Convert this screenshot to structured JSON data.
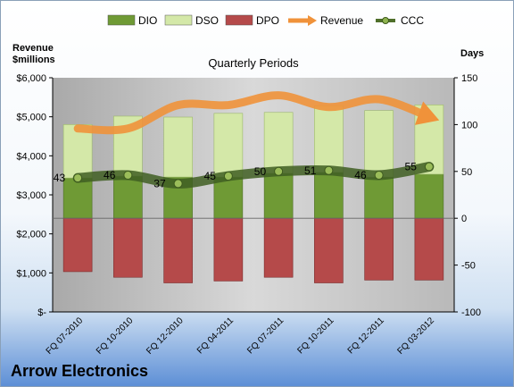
{
  "chart_data": {
    "type": "bar",
    "title": "Quarterly Periods",
    "company": "Arrow Electronics",
    "left_axis_label": [
      "Revenue",
      "$millions"
    ],
    "right_axis_label": "Days",
    "left_axis": {
      "min": 0,
      "max": 6000,
      "ticks": [
        "$-",
        "$1,000",
        "$2,000",
        "$3,000",
        "$4,000",
        "$5,000",
        "$6,000"
      ]
    },
    "right_axis": {
      "min": -100,
      "max": 150,
      "ticks": [
        "-100",
        "-50",
        "0",
        "50",
        "100",
        "150"
      ]
    },
    "categories": [
      "FQ 07-2010",
      "FQ 10-2010",
      "FQ 12-2010",
      "FQ 04-2011",
      "FQ 07-2011",
      "FQ 10-2011",
      "FQ 12-2011",
      "FQ 03-2012"
    ],
    "series": [
      {
        "name": "DIO",
        "axis": "days",
        "color": "#6f9a35",
        "values": [
          43,
          45,
          44,
          44,
          48,
          49,
          44,
          47
        ]
      },
      {
        "name": "DSO",
        "axis": "days",
        "color": "#d4e8a8",
        "values": [
          57,
          64,
          64,
          68,
          65,
          71,
          71,
          74
        ]
      },
      {
        "name": "DPO",
        "axis": "days",
        "color": "#b54a4a",
        "values": [
          -57,
          -63,
          -69,
          -67,
          -63,
          -69,
          -66,
          -66
        ]
      },
      {
        "name": "Revenue",
        "axis": "revenue",
        "color": "#f0923a",
        "values": [
          4700,
          4700,
          5300,
          5300,
          5550,
          5250,
          5450,
          5000
        ]
      },
      {
        "name": "CCC",
        "axis": "days",
        "color": "#4f6f2a",
        "values": [
          43,
          46,
          37,
          45,
          50,
          51,
          46,
          55
        ],
        "labels": [
          "43",
          "46",
          "37",
          "45",
          "50",
          "51",
          "46",
          "55"
        ]
      }
    ],
    "legend": [
      "DIO",
      "DSO",
      "DPO",
      "Revenue",
      "CCC"
    ],
    "legend_position": "top",
    "grid": false
  }
}
